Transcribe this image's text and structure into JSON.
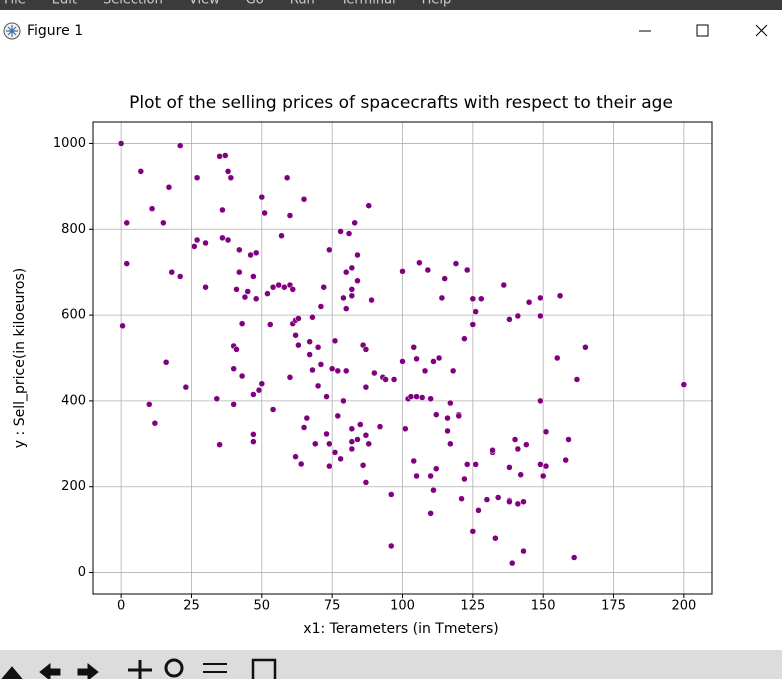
{
  "window": {
    "menu": [
      "File",
      "Edit",
      "Selection",
      "View",
      "Go",
      "Run",
      "Terminal",
      "Help"
    ],
    "title": "Figure 1"
  },
  "chart_data": {
    "type": "scatter",
    "title": "Plot of the selling prices of spacecrafts with respect to their age",
    "xlabel": "x1: Terameters (in Tmeters)",
    "ylabel": "y : Sell_price(in kiloeuros)",
    "color": "#800080",
    "grid": true,
    "xlim": [
      -10,
      210
    ],
    "ylim": [
      -50,
      1050
    ],
    "xticks": [
      0,
      25,
      50,
      75,
      100,
      125,
      150,
      175,
      200
    ],
    "yticks": [
      0,
      200,
      400,
      600,
      800,
      1000
    ],
    "x": [
      0,
      0.5,
      2,
      2,
      7,
      10,
      11,
      12,
      15,
      16,
      17,
      18,
      21,
      21,
      23,
      26,
      27,
      27,
      30,
      30,
      34,
      35,
      35,
      36,
      36,
      37,
      38,
      38,
      39,
      40,
      40,
      40,
      41,
      41,
      42,
      42,
      43,
      43,
      44,
      45,
      46,
      47,
      47,
      47,
      47,
      48,
      48,
      49,
      50,
      50,
      51,
      52,
      53,
      54,
      54,
      56,
      57,
      58,
      59,
      60,
      60,
      60,
      61,
      61,
      62,
      62,
      62,
      63,
      63,
      64,
      65,
      65,
      66,
      67,
      67,
      68,
      68,
      69,
      70,
      70,
      71,
      71,
      72,
      73,
      73,
      74,
      74,
      74,
      75,
      76,
      76,
      77,
      77,
      78,
      78,
      79,
      79,
      80,
      80,
      80,
      81,
      82,
      82,
      82,
      82,
      82,
      82,
      83,
      84,
      84,
      84,
      85,
      86,
      86,
      87,
      87,
      87,
      87,
      88,
      88,
      89,
      90,
      92,
      93,
      94,
      96,
      96,
      97,
      100,
      100,
      101,
      102,
      103,
      104,
      104,
      105,
      105,
      105,
      106,
      107,
      108,
      109,
      110,
      110,
      110,
      111,
      111,
      112,
      112,
      113,
      114,
      115,
      116,
      116,
      117,
      117,
      118,
      119,
      120,
      120,
      121,
      122,
      122,
      123,
      123,
      125,
      125,
      125,
      126,
      126,
      127,
      128,
      130,
      132,
      132,
      133,
      134,
      136,
      138,
      138,
      138,
      138,
      139,
      140,
      141,
      141,
      141,
      142,
      143,
      143,
      144,
      145,
      149,
      149,
      149,
      149,
      150,
      151,
      151,
      155,
      156,
      158,
      159,
      161,
      162,
      165,
      200
    ],
    "values": [
      1000,
      575,
      815,
      720,
      935,
      392,
      848,
      348,
      815,
      490,
      898,
      700,
      995,
      690,
      432,
      760,
      920,
      775,
      768,
      665,
      405,
      298,
      970,
      845,
      780,
      972,
      775,
      935,
      920,
      392,
      528,
      475,
      520,
      660,
      700,
      752,
      580,
      458,
      642,
      655,
      740,
      415,
      690,
      305,
      322,
      638,
      745,
      425,
      440,
      875,
      838,
      650,
      578,
      380,
      665,
      670,
      785,
      665,
      920,
      455,
      832,
      670,
      660,
      580,
      588,
      270,
      553,
      530,
      592,
      253,
      870,
      338,
      360,
      508,
      538,
      595,
      472,
      300,
      525,
      435,
      620,
      485,
      665,
      410,
      323,
      248,
      752,
      300,
      475,
      540,
      280,
      470,
      365,
      795,
      265,
      640,
      400,
      470,
      700,
      615,
      790,
      660,
      645,
      335,
      305,
      288,
      710,
      815,
      310,
      740,
      680,
      345,
      530,
      250,
      520,
      210,
      320,
      432,
      300,
      855,
      635,
      465,
      340,
      455,
      450,
      182,
      62,
      450,
      492,
      702,
      335,
      405,
      410,
      260,
      525,
      225,
      410,
      498,
      722,
      408,
      470,
      705,
      225,
      405,
      138,
      492,
      192,
      242,
      368,
      500,
      640,
      685,
      330,
      360,
      300,
      395,
      470,
      720,
      368,
      365,
      172,
      545,
      218,
      705,
      252,
      638,
      96,
      578,
      608,
      252,
      145,
      638,
      170,
      280,
      285,
      80,
      175,
      670,
      245,
      168,
      165,
      590,
      22,
      310,
      288,
      160,
      598,
      228,
      165,
      50,
      298,
      630,
      640,
      252,
      400,
      598,
      225,
      248,
      328,
      500,
      645,
      262,
      310,
      35,
      450,
      525,
      438
    ]
  }
}
